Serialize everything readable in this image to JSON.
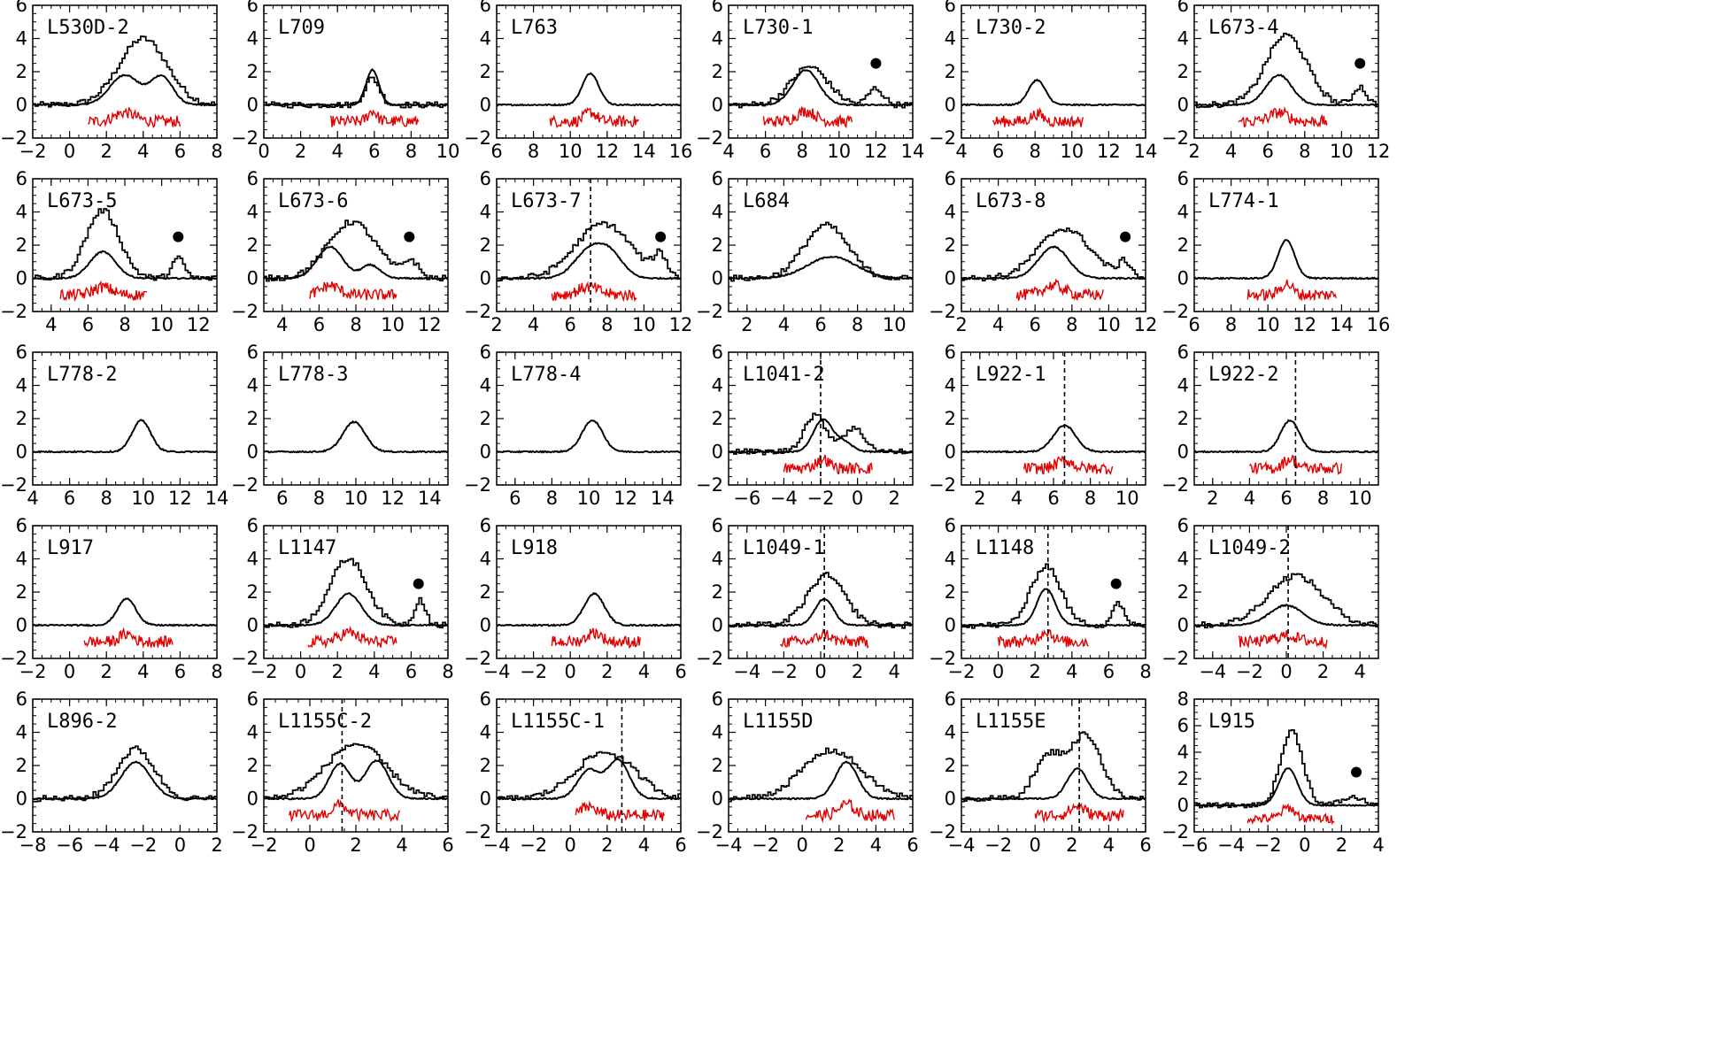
{
  "figure": {
    "description_colors": {
      "histogram": "#000000",
      "smooth_line": "#000000",
      "red_trace": "#e00000",
      "dashed_marker": "#000000",
      "dot_marker": "#000000"
    }
  },
  "chart_data": [
    {
      "type": "line",
      "title": "L530D-2",
      "xlim": [
        -2,
        8
      ],
      "xticks": [
        -2,
        0,
        2,
        4,
        6,
        8
      ],
      "ylim": [
        -2,
        6
      ],
      "yticks": [
        -2,
        0,
        2,
        4,
        6
      ],
      "line": [
        {
          "c": 3,
          "a": 1.8,
          "s": 0.8
        },
        {
          "c": 5,
          "a": 1.7,
          "s": 0.6
        }
      ],
      "hist": [
        {
          "c": 4,
          "a": 4.0,
          "s": 1.3
        }
      ],
      "red": {
        "from": 1,
        "to": 6
      },
      "dashed": null,
      "dot": null
    },
    {
      "type": "line",
      "title": "L709",
      "xlim": [
        0,
        10
      ],
      "xticks": [
        0,
        2,
        4,
        6,
        8,
        10
      ],
      "ylim": [
        -2,
        6
      ],
      "yticks": [
        -2,
        0,
        2,
        4,
        6
      ],
      "line": [
        {
          "c": 5.9,
          "a": 2.1,
          "s": 0.35
        }
      ],
      "hist": [
        {
          "c": 5.9,
          "a": 1.6,
          "s": 0.4
        }
      ],
      "red": {
        "from": 3.6,
        "to": 8.4
      },
      "dashed": null,
      "dot": null
    },
    {
      "type": "line",
      "title": "L763",
      "xlim": [
        6,
        16
      ],
      "xticks": [
        6,
        8,
        10,
        12,
        14,
        16
      ],
      "ylim": [
        -2,
        6
      ],
      "yticks": [
        -2,
        0,
        2,
        4,
        6
      ],
      "line": [
        {
          "c": 11.1,
          "a": 1.9,
          "s": 0.45
        }
      ],
      "hist": null,
      "red": {
        "from": 8.9,
        "to": 13.7
      },
      "dashed": null,
      "dot": null
    },
    {
      "type": "line",
      "title": "L730-1",
      "xlim": [
        4,
        14
      ],
      "xticks": [
        4,
        6,
        8,
        10,
        12,
        14
      ],
      "ylim": [
        -2,
        6
      ],
      "yticks": [
        -2,
        0,
        2,
        4,
        6
      ],
      "line": [
        {
          "c": 8.2,
          "a": 2.1,
          "s": 0.7
        }
      ],
      "hist": [
        {
          "c": 8.4,
          "a": 2.3,
          "s": 1.0
        },
        {
          "c": 12.0,
          "a": 1.0,
          "s": 0.4
        }
      ],
      "red": {
        "from": 5.9,
        "to": 10.7
      },
      "dashed": null,
      "dot": [
        12,
        2.5
      ]
    },
    {
      "type": "line",
      "title": "L730-2",
      "xlim": [
        4,
        14
      ],
      "xticks": [
        4,
        6,
        8,
        10,
        12,
        14
      ],
      "ylim": [
        -2,
        6
      ],
      "yticks": [
        -2,
        0,
        2,
        4,
        6
      ],
      "line": [
        {
          "c": 8.1,
          "a": 1.5,
          "s": 0.45
        }
      ],
      "hist": null,
      "red": {
        "from": 5.7,
        "to": 10.6
      },
      "dashed": null,
      "dot": null
    },
    {
      "type": "line",
      "title": "L673-4",
      "xlim": [
        2,
        12
      ],
      "xticks": [
        2,
        4,
        6,
        8,
        10,
        12
      ],
      "ylim": [
        -2,
        6
      ],
      "yticks": [
        -2,
        0,
        2,
        4,
        6
      ],
      "line": [
        {
          "c": 6.6,
          "a": 1.8,
          "s": 0.7
        }
      ],
      "hist": [
        {
          "c": 7.0,
          "a": 4.2,
          "s": 1.1
        },
        {
          "c": 11.0,
          "a": 1.1,
          "s": 0.35
        }
      ],
      "red": {
        "from": 4.4,
        "to": 9.2
      },
      "dashed": null,
      "dot": [
        11,
        2.5
      ]
    },
    {
      "type": "line",
      "title": "L673-5",
      "xlim": [
        3,
        13
      ],
      "xticks": [
        4,
        6,
        8,
        10,
        12
      ],
      "ylim": [
        -2,
        6
      ],
      "yticks": [
        -2,
        0,
        2,
        4,
        6
      ],
      "line": [
        {
          "c": 6.8,
          "a": 1.6,
          "s": 0.7
        }
      ],
      "hist": [
        {
          "c": 6.8,
          "a": 4.1,
          "s": 0.9
        },
        {
          "c": 10.9,
          "a": 1.2,
          "s": 0.35
        }
      ],
      "red": {
        "from": 4.5,
        "to": 9.2
      },
      "dashed": null,
      "dot": [
        10.9,
        2.5
      ]
    },
    {
      "type": "line",
      "title": "L673-6",
      "xlim": [
        3,
        13
      ],
      "xticks": [
        4,
        6,
        8,
        10,
        12
      ],
      "ylim": [
        -2,
        6
      ],
      "yticks": [
        -2,
        0,
        2,
        4,
        6
      ],
      "line": [
        {
          "c": 6.6,
          "a": 1.9,
          "s": 0.7
        },
        {
          "c": 8.8,
          "a": 0.8,
          "s": 0.5
        }
      ],
      "hist": [
        {
          "c": 7.8,
          "a": 3.4,
          "s": 1.3
        },
        {
          "c": 11.0,
          "a": 1.0,
          "s": 0.4
        }
      ],
      "red": {
        "from": 5.5,
        "to": 10.2
      },
      "dashed": null,
      "dot": [
        10.9,
        2.5
      ]
    },
    {
      "type": "line",
      "title": "L673-7",
      "xlim": [
        2,
        12
      ],
      "xticks": [
        2,
        4,
        6,
        8,
        10,
        12
      ],
      "ylim": [
        -2,
        6
      ],
      "yticks": [
        -2,
        0,
        2,
        4,
        6
      ],
      "line": [
        {
          "c": 7.0,
          "a": 1.6,
          "s": 0.8
        },
        {
          "c": 8.2,
          "a": 1.3,
          "s": 0.7
        }
      ],
      "hist": [
        {
          "c": 7.8,
          "a": 3.3,
          "s": 1.5
        },
        {
          "c": 10.9,
          "a": 1.2,
          "s": 0.35
        }
      ],
      "red": {
        "from": 5.0,
        "to": 9.6
      },
      "dashed": 7.1,
      "dot": [
        10.9,
        2.5
      ]
    },
    {
      "type": "line",
      "title": "L684",
      "xlim": [
        1,
        11
      ],
      "xticks": [
        2,
        4,
        6,
        8,
        10
      ],
      "ylim": [
        -2,
        6
      ],
      "yticks": [
        -2,
        0,
        2,
        4,
        6
      ],
      "line": [
        {
          "c": 6.6,
          "a": 1.3,
          "s": 1.3
        }
      ],
      "hist": [
        {
          "c": 6.3,
          "a": 3.2,
          "s": 1.2
        }
      ],
      "red": null,
      "dashed": null,
      "dot": null
    },
    {
      "type": "line",
      "title": "L673-8",
      "xlim": [
        2,
        12
      ],
      "xticks": [
        2,
        4,
        6,
        8,
        10,
        12
      ],
      "ylim": [
        -2,
        6
      ],
      "yticks": [
        -2,
        0,
        2,
        4,
        6
      ],
      "line": [
        {
          "c": 7.0,
          "a": 1.9,
          "s": 0.8
        }
      ],
      "hist": [
        {
          "c": 7.6,
          "a": 3.0,
          "s": 1.4
        },
        {
          "c": 10.9,
          "a": 0.9,
          "s": 0.35
        }
      ],
      "red": {
        "from": 5.0,
        "to": 9.7
      },
      "dashed": null,
      "dot": [
        10.9,
        2.5
      ]
    },
    {
      "type": "line",
      "title": "L774-1",
      "xlim": [
        6,
        16
      ],
      "xticks": [
        6,
        8,
        10,
        12,
        14,
        16
      ],
      "ylim": [
        -2,
        6
      ],
      "yticks": [
        -2,
        0,
        2,
        4,
        6
      ],
      "line": [
        {
          "c": 11.0,
          "a": 2.3,
          "s": 0.45
        }
      ],
      "hist": null,
      "red": {
        "from": 8.9,
        "to": 13.7
      },
      "dashed": null,
      "dot": null
    },
    {
      "type": "line",
      "title": "L778-2",
      "xlim": [
        4,
        14
      ],
      "xticks": [
        4,
        6,
        8,
        10,
        12,
        14
      ],
      "ylim": [
        -2,
        6
      ],
      "yticks": [
        -2,
        0,
        2,
        4,
        6
      ],
      "line": [
        {
          "c": 9.9,
          "a": 1.9,
          "s": 0.5
        }
      ],
      "hist": null,
      "red": null,
      "dashed": null,
      "dot": null
    },
    {
      "type": "line",
      "title": "L778-3",
      "xlim": [
        5,
        15
      ],
      "xticks": [
        6,
        8,
        10,
        12,
        14
      ],
      "ylim": [
        -2,
        6
      ],
      "yticks": [
        -2,
        0,
        2,
        4,
        6
      ],
      "line": [
        {
          "c": 9.9,
          "a": 1.8,
          "s": 0.6
        }
      ],
      "hist": null,
      "red": null,
      "dashed": null,
      "dot": null
    },
    {
      "type": "line",
      "title": "L778-4",
      "xlim": [
        5,
        15
      ],
      "xticks": [
        6,
        8,
        10,
        12,
        14
      ],
      "ylim": [
        -2,
        6
      ],
      "yticks": [
        -2,
        0,
        2,
        4,
        6
      ],
      "line": [
        {
          "c": 10.2,
          "a": 1.9,
          "s": 0.55
        }
      ],
      "hist": null,
      "red": null,
      "dashed": null,
      "dot": null
    },
    {
      "type": "line",
      "title": "L1041-2",
      "xlim": [
        -7,
        3
      ],
      "xticks": [
        -6,
        -4,
        -2,
        0,
        2
      ],
      "ylim": [
        -2,
        6
      ],
      "yticks": [
        -2,
        0,
        2,
        4,
        6
      ],
      "line": [
        {
          "c": -1.9,
          "a": 1.9,
          "s": 0.5
        },
        {
          "c": -0.8,
          "a": 0.6,
          "s": 0.5
        }
      ],
      "hist": [
        {
          "c": -2.3,
          "a": 2.2,
          "s": 0.6
        },
        {
          "c": -0.2,
          "a": 1.4,
          "s": 0.6
        }
      ],
      "red": {
        "from": -4.0,
        "to": 0.8
      },
      "dashed": -2.0,
      "dot": null
    },
    {
      "type": "line",
      "title": "L922-1",
      "xlim": [
        1,
        11
      ],
      "xticks": [
        2,
        4,
        6,
        8,
        10
      ],
      "ylim": [
        -2,
        6
      ],
      "yticks": [
        -2,
        0,
        2,
        4,
        6
      ],
      "line": [
        {
          "c": 6.6,
          "a": 1.6,
          "s": 0.6
        }
      ],
      "hist": null,
      "red": {
        "from": 4.4,
        "to": 9.2
      },
      "dashed": 6.6,
      "dot": null
    },
    {
      "type": "line",
      "title": "L922-2",
      "xlim": [
        1,
        11
      ],
      "xticks": [
        2,
        4,
        6,
        8,
        10
      ],
      "ylim": [
        -2,
        6
      ],
      "yticks": [
        -2,
        0,
        2,
        4,
        6
      ],
      "line": [
        {
          "c": 6.2,
          "a": 1.9,
          "s": 0.5
        }
      ],
      "hist": null,
      "red": {
        "from": 4.0,
        "to": 9.0
      },
      "dashed": 6.5,
      "dot": null
    },
    {
      "type": "line",
      "title": "L917",
      "xlim": [
        -2,
        8
      ],
      "xticks": [
        -2,
        0,
        2,
        4,
        6,
        8
      ],
      "ylim": [
        -2,
        6
      ],
      "yticks": [
        -2,
        0,
        2,
        4,
        6
      ],
      "line": [
        {
          "c": 3.1,
          "a": 1.6,
          "s": 0.5
        }
      ],
      "hist": null,
      "red": {
        "from": 0.8,
        "to": 5.6
      },
      "dashed": null,
      "dot": null
    },
    {
      "type": "line",
      "title": "L1147",
      "xlim": [
        -2,
        8
      ],
      "xticks": [
        -2,
        0,
        2,
        4,
        6,
        8
      ],
      "ylim": [
        -2,
        6
      ],
      "yticks": [
        -2,
        0,
        2,
        4,
        6
      ],
      "line": [
        {
          "c": 2.6,
          "a": 1.9,
          "s": 0.7
        }
      ],
      "hist": [
        {
          "c": 2.6,
          "a": 4.0,
          "s": 1.0
        },
        {
          "c": 6.5,
          "a": 1.6,
          "s": 0.3
        }
      ],
      "red": {
        "from": 0.4,
        "to": 5.2
      },
      "dashed": null,
      "dot": [
        6.4,
        2.5
      ]
    },
    {
      "type": "line",
      "title": "L918",
      "xlim": [
        -4,
        6
      ],
      "xticks": [
        -4,
        -2,
        0,
        2,
        4,
        6
      ],
      "ylim": [
        -2,
        6
      ],
      "yticks": [
        -2,
        0,
        2,
        4,
        6
      ],
      "line": [
        {
          "c": 1.3,
          "a": 1.9,
          "s": 0.55
        }
      ],
      "hist": null,
      "red": {
        "from": -1.0,
        "to": 3.8
      },
      "dashed": null,
      "dot": null
    },
    {
      "type": "line",
      "title": "L1049-1",
      "xlim": [
        -5,
        5
      ],
      "xticks": [
        -4,
        -2,
        0,
        2,
        4
      ],
      "ylim": [
        -2,
        6
      ],
      "yticks": [
        -2,
        0,
        2,
        4,
        6
      ],
      "line": [
        {
          "c": 0.2,
          "a": 1.6,
          "s": 0.5
        }
      ],
      "hist": [
        {
          "c": 0.3,
          "a": 3.0,
          "s": 1.0
        }
      ],
      "red": {
        "from": -2.2,
        "to": 2.6
      },
      "dashed": 0.2,
      "dot": null
    },
    {
      "type": "line",
      "title": "L1148",
      "xlim": [
        -2,
        8
      ],
      "xticks": [
        -2,
        0,
        2,
        4,
        6,
        8
      ],
      "ylim": [
        -2,
        6
      ],
      "yticks": [
        -2,
        0,
        2,
        4,
        6
      ],
      "line": [
        {
          "c": 2.6,
          "a": 2.2,
          "s": 0.5
        }
      ],
      "hist": [
        {
          "c": 2.6,
          "a": 3.6,
          "s": 0.8
        },
        {
          "c": 6.5,
          "a": 1.4,
          "s": 0.3
        }
      ],
      "red": {
        "from": 0,
        "to": 4.9
      },
      "dashed": 2.7,
      "dot": [
        6.4,
        2.5
      ]
    },
    {
      "type": "line",
      "title": "L1049-2",
      "xlim": [
        -5,
        5
      ],
      "xticks": [
        -4,
        -2,
        0,
        2,
        4
      ],
      "ylim": [
        -2,
        6
      ],
      "yticks": [
        -2,
        0,
        2,
        4,
        6
      ],
      "line": [
        {
          "c": 0.0,
          "a": 1.2,
          "s": 0.9
        }
      ],
      "hist": [
        {
          "c": 0.5,
          "a": 3.0,
          "s": 1.5
        }
      ],
      "red": {
        "from": -2.6,
        "to": 2.2
      },
      "dashed": 0.1,
      "dot": null
    },
    {
      "type": "line",
      "title": "L896-2",
      "xlim": [
        -8,
        2
      ],
      "xticks": [
        -8,
        -6,
        -4,
        -2,
        0,
        2
      ],
      "ylim": [
        -2,
        6
      ],
      "yticks": [
        -2,
        0,
        2,
        4,
        6
      ],
      "line": [
        {
          "c": -2.4,
          "a": 2.2,
          "s": 0.8
        }
      ],
      "hist": [
        {
          "c": -2.4,
          "a": 3.0,
          "s": 1.0
        }
      ],
      "red": null,
      "dashed": null,
      "dot": null
    },
    {
      "type": "line",
      "title": "L1155C-2",
      "xlim": [
        -2,
        6
      ],
      "xticks": [
        -2,
        0,
        2,
        4,
        6
      ],
      "ylim": [
        -2,
        6
      ],
      "yticks": [
        -2,
        0,
        2,
        4,
        6
      ],
      "line": [
        {
          "c": 1.3,
          "a": 2.1,
          "s": 0.45
        },
        {
          "c": 2.9,
          "a": 2.3,
          "s": 0.5
        }
      ],
      "hist": [
        {
          "c": 2.0,
          "a": 3.3,
          "s": 1.3
        }
      ],
      "red": {
        "from": -0.9,
        "to": 3.9
      },
      "dashed": 1.4,
      "dot": null
    },
    {
      "type": "line",
      "title": "L1155C-1",
      "xlim": [
        -4,
        6
      ],
      "xticks": [
        -4,
        -2,
        0,
        2,
        4,
        6
      ],
      "ylim": [
        -2,
        6
      ],
      "yticks": [
        -2,
        0,
        2,
        4,
        6
      ],
      "line": [
        {
          "c": 1.0,
          "a": 1.7,
          "s": 0.6
        },
        {
          "c": 2.6,
          "a": 2.3,
          "s": 0.6
        }
      ],
      "hist": [
        {
          "c": 1.9,
          "a": 2.8,
          "s": 1.6
        }
      ],
      "red": {
        "from": 0.3,
        "to": 5.1
      },
      "dashed": 2.8,
      "dot": null
    },
    {
      "type": "line",
      "title": "L1155D",
      "xlim": [
        -4,
        6
      ],
      "xticks": [
        -4,
        -2,
        0,
        2,
        4,
        6
      ],
      "ylim": [
        -2,
        6
      ],
      "yticks": [
        -2,
        0,
        2,
        4,
        6
      ],
      "line": [
        {
          "c": 2.4,
          "a": 2.2,
          "s": 0.6
        }
      ],
      "hist": [
        {
          "c": 1.6,
          "a": 2.9,
          "s": 1.6
        }
      ],
      "red": {
        "from": 0.2,
        "to": 5.0
      },
      "dashed": null,
      "dot": null
    },
    {
      "type": "line",
      "title": "L1155E",
      "xlim": [
        -4,
        6
      ],
      "xticks": [
        -4,
        -2,
        0,
        2,
        4,
        6
      ],
      "ylim": [
        -2,
        6
      ],
      "yticks": [
        -2,
        0,
        2,
        4,
        6
      ],
      "line": [
        {
          "c": 2.3,
          "a": 1.8,
          "s": 0.55
        }
      ],
      "hist": [
        {
          "c": 0.8,
          "a": 2.6,
          "s": 0.8
        },
        {
          "c": 2.8,
          "a": 3.8,
          "s": 0.8
        }
      ],
      "red": {
        "from": 0,
        "to": 4.8
      },
      "dashed": 2.4,
      "dot": null
    },
    {
      "type": "line",
      "title": "L915",
      "xlim": [
        -6,
        4
      ],
      "xticks": [
        -6,
        -4,
        -2,
        0,
        2,
        4
      ],
      "ylim": [
        -2,
        8
      ],
      "yticks": [
        -2,
        0,
        2,
        4,
        6,
        8
      ],
      "line": [
        {
          "c": -0.9,
          "a": 2.8,
          "s": 0.5
        }
      ],
      "hist": [
        {
          "c": -0.7,
          "a": 5.6,
          "s": 0.6
        },
        {
          "c": 2.6,
          "a": 0.6,
          "s": 0.6
        }
      ],
      "red": {
        "from": -3.1,
        "to": 1.6
      },
      "dashed": null,
      "dot": [
        2.8,
        2.5
      ]
    }
  ]
}
